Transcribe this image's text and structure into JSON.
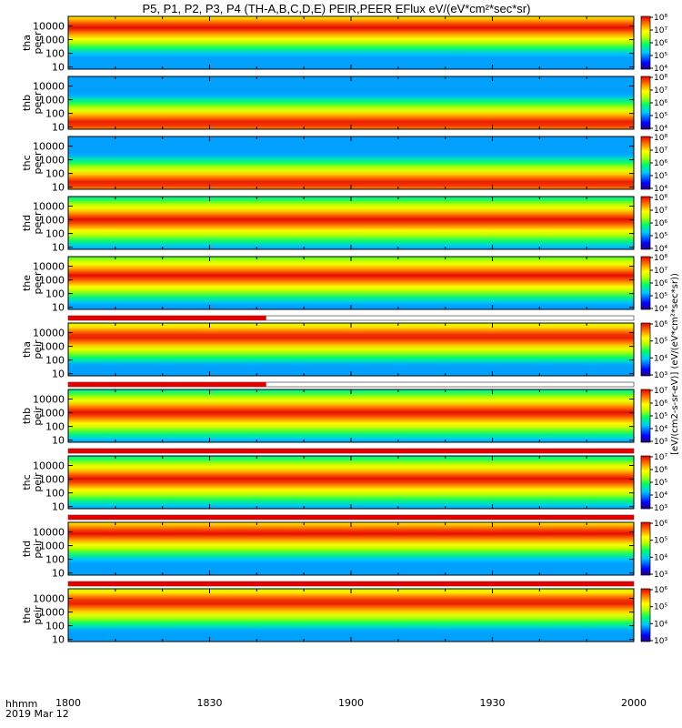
{
  "chart_data": {
    "type": "heatmap",
    "title": "P5, P1, P2, P3, P4 (TH-A,B,C,D,E) PEIR,PEER EFlux eV/(eV*cm²*sec*sr)",
    "x_axis": {
      "label": "hhmm",
      "date_label": "2019 Mar 12",
      "ticks": [
        "1800",
        "1830",
        "1900",
        "1930",
        "2000"
      ],
      "range": [
        "18:00",
        "20:00"
      ]
    },
    "y_scale": "log",
    "y_ticks": [
      "10",
      "100",
      "1000",
      "10000"
    ],
    "colorbar_label": "[eV/(cm2-s-sr-eV)] (eV/(eV*cm²*sec*sr))",
    "panels": [
      {
        "probe": "tha",
        "species": "peer",
        "ylabel": "tha\npeer",
        "ylim": [
          7,
          50000
        ],
        "cbar_exp": [
          4,
          8
        ],
        "cbar_ticks": [
          "10⁴",
          "10⁵",
          "10⁶",
          "10⁷",
          "10⁸"
        ],
        "band_energy_peak": 8000,
        "quality_bar_fraction": 1.0
      },
      {
        "probe": "thb",
        "species": "peer",
        "ylabel": "thb\npeer",
        "ylim": [
          7,
          50000
        ],
        "cbar_exp": [
          4,
          8
        ],
        "cbar_ticks": [
          "10⁴",
          "10⁵",
          "10⁶",
          "10⁷",
          "10⁸"
        ],
        "band_energy_peak": 20,
        "quality_bar_fraction": 1.0
      },
      {
        "probe": "thc",
        "species": "peer",
        "ylabel": "thc\npeer",
        "ylim": [
          7,
          50000
        ],
        "cbar_exp": [
          4,
          8
        ],
        "cbar_ticks": [
          "10⁴",
          "10⁵",
          "10⁶",
          "10⁷",
          "10⁸"
        ],
        "band_energy_peak": 20,
        "quality_bar_fraction": 1.0
      },
      {
        "probe": "thd",
        "species": "peer",
        "ylabel": "thd\npeer",
        "ylim": [
          7,
          50000
        ],
        "cbar_exp": [
          4,
          8
        ],
        "cbar_ticks": [
          "10⁴",
          "10⁵",
          "10⁶",
          "10⁷",
          "10⁸"
        ],
        "band_energy_peak": 1000,
        "quality_bar_fraction": 1.0
      },
      {
        "probe": "the",
        "species": "peer",
        "ylabel": "the\npeer",
        "ylim": [
          7,
          50000
        ],
        "cbar_exp": [
          4,
          8
        ],
        "cbar_ticks": [
          "10⁴",
          "10⁵",
          "10⁶",
          "10⁷",
          "10⁸"
        ],
        "band_energy_peak": 2000,
        "quality_bar_fraction": 1.0
      },
      {
        "probe": "tha",
        "species": "peir",
        "ylabel": "tha\npeir",
        "ylim": [
          7,
          50000
        ],
        "cbar_exp": [
          3,
          6
        ],
        "cbar_ticks": [
          "10³",
          "10⁴",
          "10⁵",
          "10⁶"
        ],
        "band_energy_peak": 5000,
        "quality_bar_fraction": 0.35
      },
      {
        "probe": "thb",
        "species": "peir",
        "ylabel": "thb\npeir",
        "ylim": [
          7,
          50000
        ],
        "cbar_exp": [
          3,
          7
        ],
        "cbar_ticks": [
          "10³",
          "10⁴",
          "10⁵",
          "10⁶",
          "10⁷"
        ],
        "band_energy_peak": 1000,
        "quality_bar_fraction": 0.35
      },
      {
        "probe": "thc",
        "species": "peir",
        "ylabel": "thc\npeir",
        "ylim": [
          7,
          50000
        ],
        "cbar_exp": [
          3,
          7
        ],
        "cbar_ticks": [
          "10³",
          "10⁴",
          "10⁵",
          "10⁶",
          "10⁷"
        ],
        "band_energy_peak": 1000,
        "quality_bar_fraction": 1.0
      },
      {
        "probe": "thd",
        "species": "peir",
        "ylabel": "thd\npeir",
        "ylim": [
          7,
          50000
        ],
        "cbar_exp": [
          3,
          6
        ],
        "cbar_ticks": [
          "10³",
          "10⁴",
          "10⁵",
          "10⁶"
        ],
        "band_energy_peak": 8000,
        "quality_bar_fraction": 1.0
      },
      {
        "probe": "the",
        "species": "peir",
        "ylabel": "the\npeir",
        "ylim": [
          7,
          50000
        ],
        "cbar_exp": [
          3,
          6
        ],
        "cbar_ticks": [
          "10³",
          "10⁴",
          "10⁵",
          "10⁶"
        ],
        "band_energy_peak": 5000,
        "quality_bar_fraction": 1.0
      }
    ]
  }
}
